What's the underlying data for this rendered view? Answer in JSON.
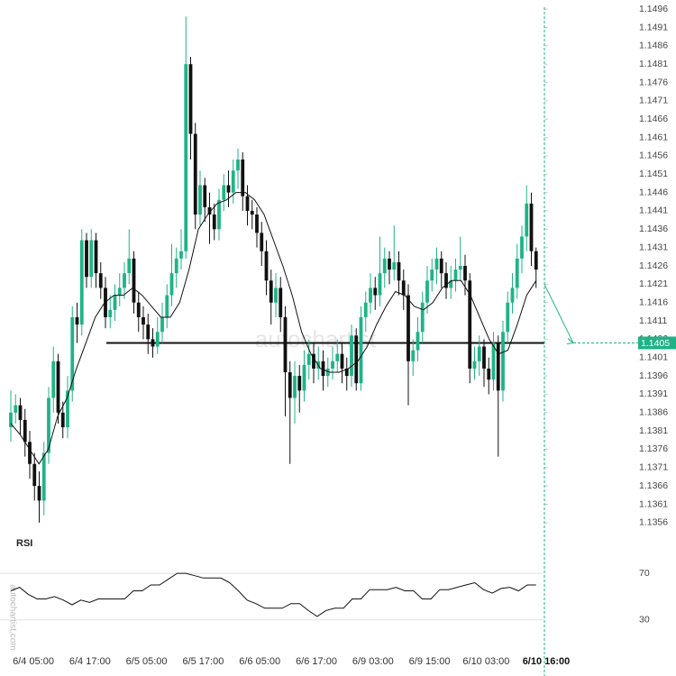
{
  "chart_data": {
    "type": "candlestick",
    "watermark": "autochartist",
    "side_watermark": "autochartist.com",
    "open": [
      1.1382,
      1.1386,
      1.1388,
      1.1384,
      1.1378,
      1.1372,
      1.1366,
      1.1362,
      1.1375,
      1.139,
      1.14,
      1.1386,
      1.1382,
      1.1392,
      1.1412,
      1.141,
      1.1433,
      1.1423,
      1.1433,
      1.1424,
      1.142,
      1.1412,
      1.1414,
      1.1418,
      1.142,
      1.1424,
      1.1428,
      1.1416,
      1.1412,
      1.141,
      1.1406,
      1.1404,
      1.1408,
      1.1412,
      1.1418,
      1.1424,
      1.1428,
      1.143,
      1.1481,
      1.1462,
      1.144,
      1.1448,
      1.1442,
      1.144,
      1.1436,
      1.1444,
      1.1448,
      1.1446,
      1.1452,
      1.1455,
      1.1445,
      1.1441,
      1.144,
      1.1435,
      1.143,
      1.1422,
      1.1416,
      1.142,
      1.1412,
      1.1397,
      1.139,
      1.1396,
      1.1392,
      1.1399,
      1.1402,
      1.1398,
      1.14,
      1.1396,
      1.1398,
      1.14,
      1.1402,
      1.1398,
      1.1396,
      1.1407,
      1.1394,
      1.1412,
      1.1416,
      1.142,
      1.1418,
      1.1424,
      1.1428,
      1.1425,
      1.1427,
      1.1422,
      1.1418,
      1.14,
      1.1403,
      1.1408,
      1.1416,
      1.1422,
      1.1425,
      1.1428,
      1.1424,
      1.142,
      1.1422,
      1.1425,
      1.1426,
      1.1422,
      1.1398,
      1.14,
      1.1404,
      1.1398,
      1.1395,
      1.1405,
      1.1392,
      1.1408,
      1.1416,
      1.142,
      1.1428,
      1.1434,
      1.1443,
      1.143
    ],
    "high": [
      1.1392,
      1.1391,
      1.139,
      1.1387,
      1.1381,
      1.1375,
      1.137,
      1.1378,
      1.1393,
      1.1404,
      1.1402,
      1.1389,
      1.1396,
      1.1415,
      1.1416,
      1.1436,
      1.1435,
      1.1436,
      1.1435,
      1.1427,
      1.1423,
      1.1418,
      1.1421,
      1.1424,
      1.1427,
      1.1436,
      1.143,
      1.1419,
      1.1415,
      1.1413,
      1.1409,
      1.1412,
      1.1416,
      1.1421,
      1.1432,
      1.1431,
      1.1436,
      1.1494,
      1.1483,
      1.1465,
      1.1452,
      1.145,
      1.1446,
      1.1443,
      1.1447,
      1.1451,
      1.1452,
      1.1455,
      1.1458,
      1.1457,
      1.1448,
      1.1444,
      1.1442,
      1.1438,
      1.1433,
      1.1425,
      1.1424,
      1.1423,
      1.1415,
      1.14,
      1.14,
      1.1399,
      1.1403,
      1.1406,
      1.1405,
      1.1404,
      1.1403,
      1.1401,
      1.1404,
      1.1406,
      1.1405,
      1.1401,
      1.141,
      1.1409,
      1.1415,
      1.1419,
      1.1424,
      1.1423,
      1.1434,
      1.1431,
      1.143,
      1.1437,
      1.143,
      1.1425,
      1.1421,
      1.1406,
      1.1412,
      1.1419,
      1.1426,
      1.1428,
      1.1431,
      1.143,
      1.1427,
      1.1426,
      1.1428,
      1.1434,
      1.1429,
      1.1424,
      1.1404,
      1.1407,
      1.1406,
      1.1401,
      1.1408,
      1.1407,
      1.1411,
      1.1419,
      1.1424,
      1.1432,
      1.1437,
      1.1448,
      1.1446,
      1.1431
    ],
    "low": [
      1.1378,
      1.1383,
      1.138,
      1.1374,
      1.1368,
      1.1362,
      1.1356,
      1.1358,
      1.1372,
      1.1386,
      1.1383,
      1.1379,
      1.1379,
      1.1389,
      1.1405,
      1.1407,
      1.142,
      1.142,
      1.142,
      1.1417,
      1.1409,
      1.1409,
      1.1411,
      1.1415,
      1.1417,
      1.1421,
      1.1413,
      1.1408,
      1.1406,
      1.1402,
      1.1401,
      1.1402,
      1.1405,
      1.1409,
      1.1415,
      1.142,
      1.1425,
      1.1428,
      1.1455,
      1.1436,
      1.1437,
      1.1438,
      1.1432,
      1.1433,
      1.1433,
      1.1441,
      1.1442,
      1.1443,
      1.1447,
      1.1441,
      1.1437,
      1.1436,
      1.1431,
      1.1426,
      1.1418,
      1.141,
      1.1412,
      1.1408,
      1.1385,
      1.1372,
      1.1383,
      1.1386,
      1.1389,
      1.1395,
      1.1394,
      1.1395,
      1.1392,
      1.1393,
      1.1395,
      1.1397,
      1.1394,
      1.1392,
      1.1393,
      1.1392,
      1.1392,
      1.1408,
      1.1413,
      1.1414,
      1.1415,
      1.142,
      1.1421,
      1.1422,
      1.1418,
      1.1414,
      1.1388,
      1.1396,
      1.14,
      1.1405,
      1.1413,
      1.1419,
      1.1421,
      1.142,
      1.1417,
      1.1417,
      1.1419,
      1.1422,
      1.1418,
      1.1394,
      1.1395,
      1.1396,
      1.1393,
      1.1391,
      1.1392,
      1.1374,
      1.1389,
      1.1405,
      1.1413,
      1.1417,
      1.1424,
      1.143,
      1.1426,
      1.142
    ],
    "close": [
      1.1386,
      1.1388,
      1.1384,
      1.1378,
      1.1372,
      1.1366,
      1.1362,
      1.1375,
      1.139,
      1.14,
      1.1386,
      1.1382,
      1.1392,
      1.1412,
      1.141,
      1.1433,
      1.1423,
      1.1433,
      1.1424,
      1.142,
      1.1412,
      1.1414,
      1.1418,
      1.142,
      1.1424,
      1.1428,
      1.1416,
      1.1412,
      1.141,
      1.1406,
      1.1404,
      1.1408,
      1.1412,
      1.1418,
      1.1424,
      1.1428,
      1.143,
      1.1481,
      1.1462,
      1.144,
      1.1448,
      1.1442,
      1.144,
      1.1436,
      1.1444,
      1.1448,
      1.1446,
      1.1452,
      1.1455,
      1.1445,
      1.1441,
      1.144,
      1.1435,
      1.143,
      1.1422,
      1.1416,
      1.142,
      1.1412,
      1.1397,
      1.139,
      1.1396,
      1.1392,
      1.1399,
      1.1402,
      1.1398,
      1.14,
      1.1396,
      1.1398,
      1.14,
      1.1402,
      1.1398,
      1.1396,
      1.1407,
      1.1394,
      1.1412,
      1.1416,
      1.142,
      1.1418,
      1.1424,
      1.1428,
      1.1425,
      1.1427,
      1.1422,
      1.1418,
      1.14,
      1.1403,
      1.1408,
      1.1416,
      1.1422,
      1.1425,
      1.1428,
      1.1424,
      1.142,
      1.1422,
      1.1425,
      1.1426,
      1.1422,
      1.1398,
      1.14,
      1.1404,
      1.1398,
      1.1395,
      1.1405,
      1.1392,
      1.1408,
      1.1416,
      1.142,
      1.1428,
      1.1434,
      1.1443,
      1.143,
      1.1425
    ],
    "moving_average": [
      1.1383,
      1.138,
      1.1376,
      1.1372,
      1.1376,
      1.1385,
      1.139,
      1.1398,
      1.1405,
      1.1412,
      1.1416,
      1.1418,
      1.1418,
      1.142,
      1.1418,
      1.1415,
      1.1412,
      1.1412,
      1.1416,
      1.1425,
      1.1436,
      1.144,
      1.1443,
      1.1444,
      1.1446,
      1.1446,
      1.1444,
      1.144,
      1.1433,
      1.1426,
      1.1418,
      1.1408,
      1.1402,
      1.1398,
      1.1397,
      1.1397,
      1.1398,
      1.14,
      1.1404,
      1.141,
      1.1415,
      1.1419,
      1.1418,
      1.1415,
      1.1414,
      1.1416,
      1.142,
      1.1422,
      1.1422,
      1.1418,
      1.1412,
      1.1406,
      1.1402,
      1.1403,
      1.141,
      1.1418,
      1.1422
    ],
    "up_color": "#1fb386",
    "down_color": "#111111",
    "support": 1.1405,
    "price_label": {
      "value": 1.1405,
      "label": "1.1405"
    },
    "forecast": [
      1.1421,
      1.1405
    ],
    "ylim": [
      1.13535,
      1.14985
    ],
    "yticks": [
      1.1356,
      1.1361,
      1.1366,
      1.1371,
      1.1376,
      1.1381,
      1.1386,
      1.1391,
      1.1396,
      1.1401,
      1.1406,
      1.1411,
      1.1416,
      1.1421,
      1.1426,
      1.1431,
      1.1436,
      1.1441,
      1.1446,
      1.1451,
      1.1456,
      1.1461,
      1.1466,
      1.1471,
      1.1476,
      1.1481,
      1.1486,
      1.1491,
      1.1496
    ],
    "x_labels": [
      "6/4 05:00",
      "6/4 17:00",
      "6/5 05:00",
      "6/5 17:00",
      "6/6 05:00",
      "6/6 17:00",
      "6/9 03:00",
      "6/9 15:00",
      "6/10 03:00",
      "6/10 16:00"
    ],
    "rsi": {
      "title": "RSI",
      "values": [
        55,
        58,
        52,
        48,
        48,
        50,
        47,
        43,
        47,
        45,
        48,
        48,
        48,
        48,
        55,
        55,
        60,
        60,
        65,
        70,
        70,
        68,
        66,
        66,
        66,
        62,
        55,
        47,
        44,
        40,
        40,
        40,
        44,
        44,
        38,
        33,
        38,
        40,
        40,
        48,
        48,
        56,
        56,
        56,
        58,
        55,
        55,
        48,
        48,
        56,
        56,
        58,
        60,
        62,
        56,
        53,
        57,
        58,
        55,
        60,
        60
      ],
      "ylim": [
        5,
        98
      ],
      "levels": [
        70,
        30
      ]
    }
  }
}
